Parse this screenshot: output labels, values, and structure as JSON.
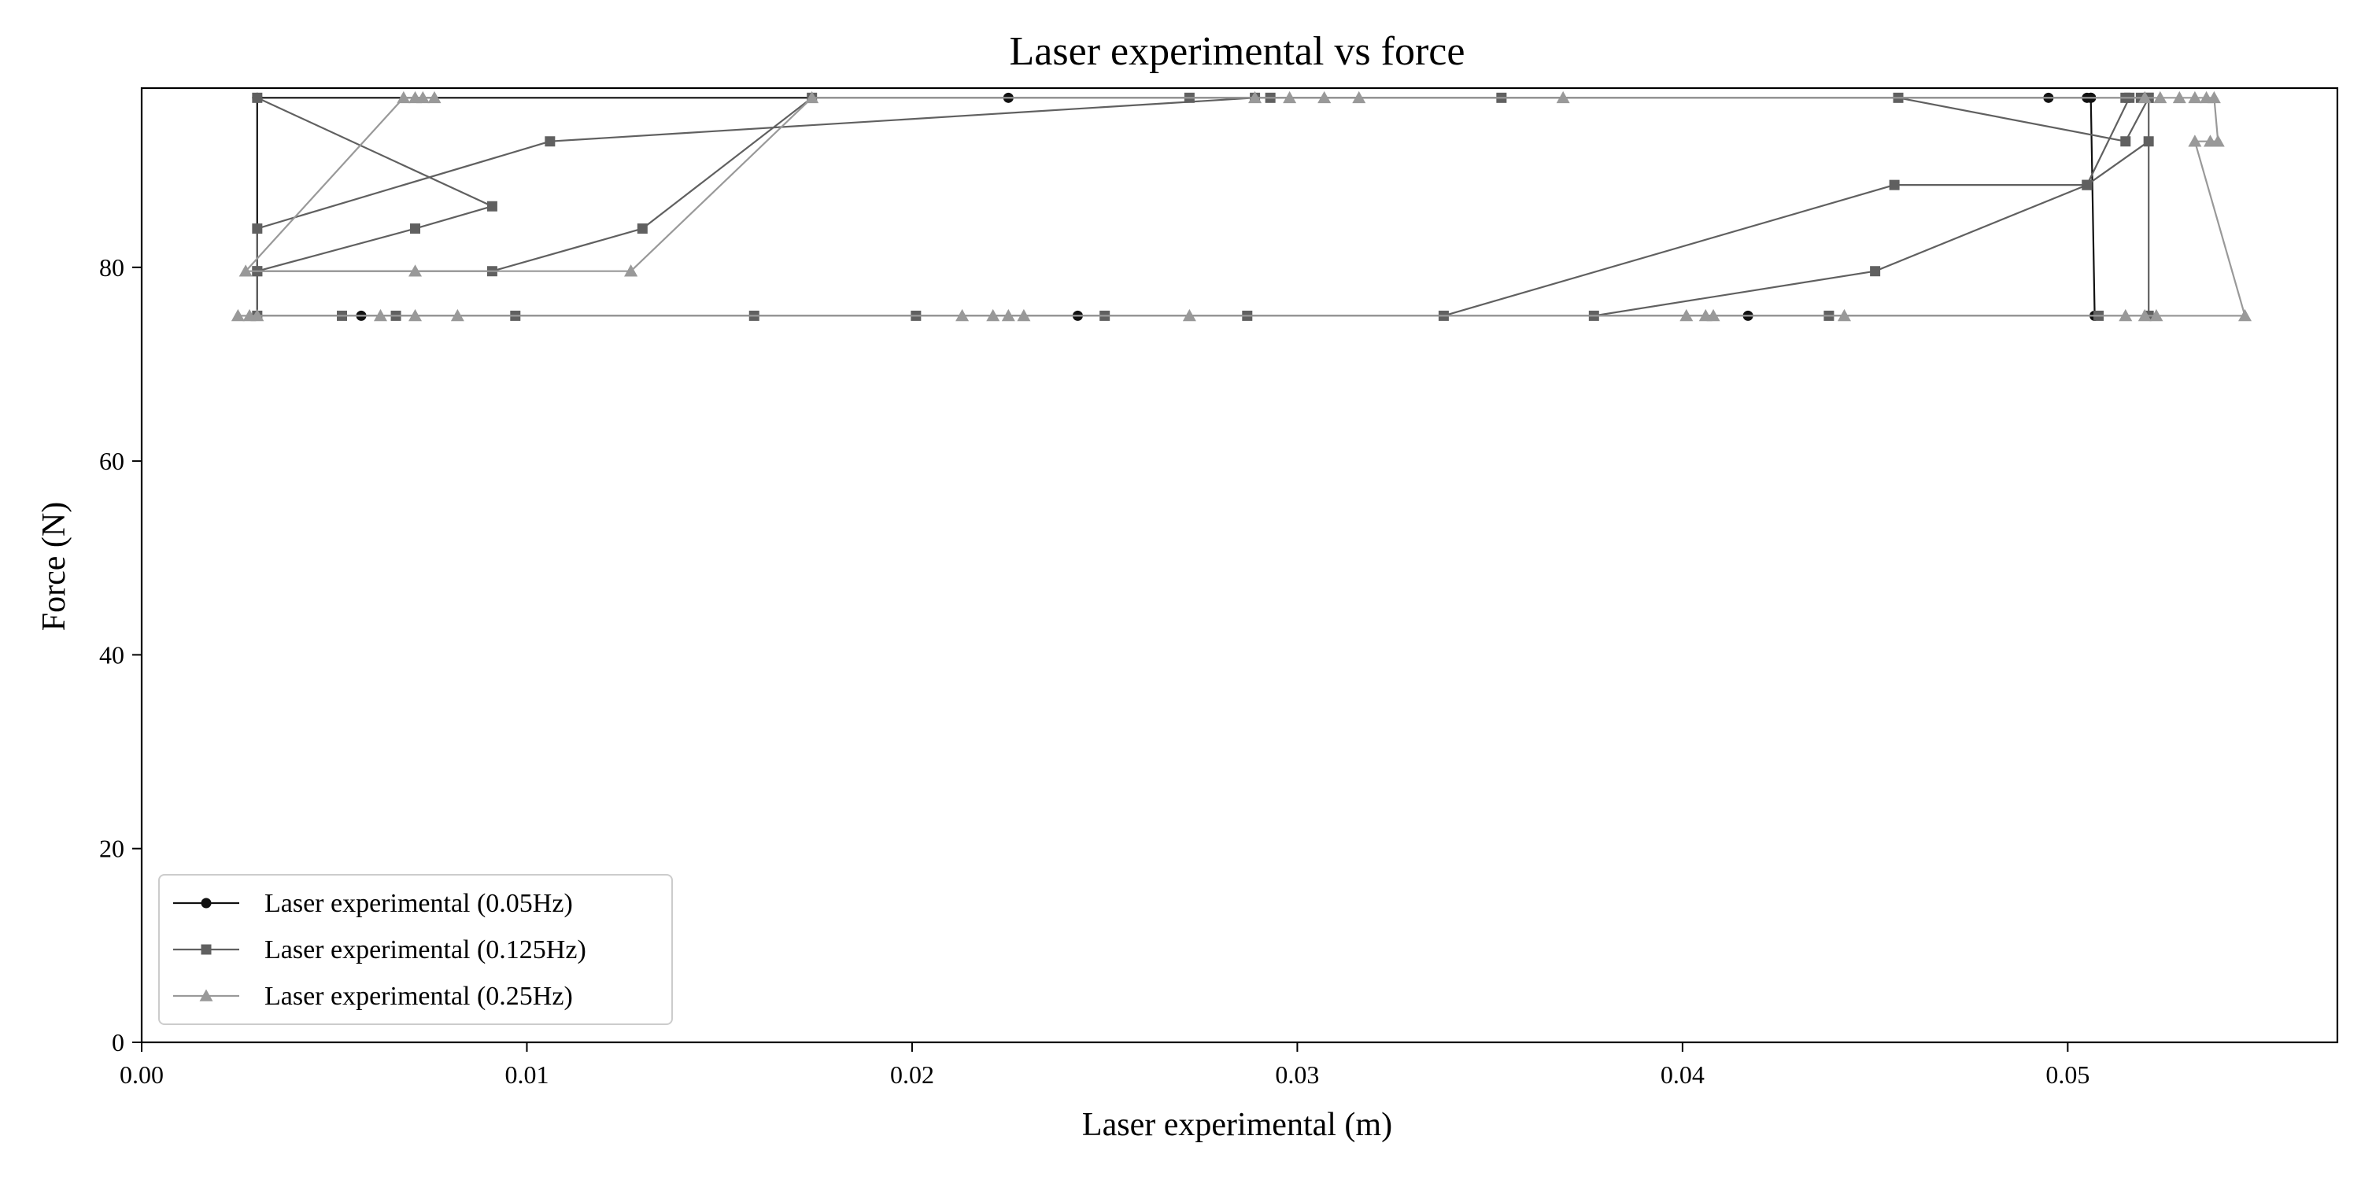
{
  "chart_data": {
    "type": "line",
    "title": "Laser experimental vs force",
    "xlabel": "Laser experimental (m)",
    "ylabel": "Force (N)",
    "xlim": [
      0.0,
      0.057
    ],
    "ylim": [
      0,
      98.5
    ],
    "xticks": [
      0.0,
      0.01,
      0.02,
      0.03,
      0.04,
      0.05
    ],
    "xtick_labels": [
      "0.00",
      "0.01",
      "0.02",
      "0.03",
      "0.04",
      "0.05"
    ],
    "yticks": [
      0,
      20,
      40,
      60,
      80
    ],
    "ytick_labels": [
      "0",
      "20",
      "40",
      "60",
      "80"
    ],
    "grid": false,
    "legend_position": "lower-left",
    "series": [
      {
        "name": "Laser experimental (0.05Hz)",
        "color": "#111111",
        "marker": "circle",
        "x": [
          0.003,
          0.0225,
          0.0495,
          0.0505,
          0.0506,
          0.0506,
          0.0506,
          0.0507,
          0.0507,
          0.0417,
          0.0243,
          0.0057,
          0.003,
          0.003
        ],
        "y": [
          97.5,
          97.5,
          97.5,
          97.5,
          97.5,
          97.5,
          97.5,
          75,
          75,
          75,
          75,
          75,
          75,
          97.5
        ]
      },
      {
        "name": "Laser experimental (0.125Hz)",
        "color": "#606060",
        "marker": "square",
        "x": [
          0.003,
          0.0091,
          0.0071,
          0.003,
          0.003,
          0.0052,
          0.0066,
          0.0097,
          0.0159,
          0.0201,
          0.025,
          0.0287,
          0.0338,
          0.0455,
          0.0505,
          0.0521,
          0.0521,
          0.0516,
          0.0505,
          0.045,
          0.0377,
          0.0438,
          0.0508,
          0.0521,
          0.0521,
          0.0515,
          0.0456,
          0.0353,
          0.0293,
          0.0272,
          0.0174,
          0.013,
          0.0091,
          0.003,
          0.003,
          0.0106,
          0.0289,
          0.0515,
          0.0519
        ],
        "y": [
          97.5,
          86.3,
          84.0,
          79.6,
          75,
          75,
          75,
          75,
          75,
          75,
          75,
          75,
          75,
          88.5,
          88.5,
          93.0,
          97.5,
          97.5,
          88.5,
          79.6,
          75,
          75,
          75,
          75,
          97.5,
          93.0,
          97.5,
          97.5,
          97.5,
          97.5,
          97.5,
          84.0,
          79.6,
          79.6,
          84.0,
          93.0,
          97.5,
          97.5,
          97.5
        ]
      },
      {
        "name": "Laser experimental (0.25Hz)",
        "color": "#999999",
        "marker": "triangle",
        "x": [
          0.0025,
          0.0028,
          0.003,
          0.0062,
          0.0071,
          0.0082,
          0.0213,
          0.0221,
          0.0225,
          0.0229,
          0.0272,
          0.0401,
          0.0406,
          0.0408,
          0.0442,
          0.0515,
          0.052,
          0.0523,
          0.0546,
          0.0533,
          0.0537,
          0.0539,
          0.0538,
          0.0536,
          0.0533,
          0.0529,
          0.0524,
          0.052,
          0.0369,
          0.0316,
          0.0307,
          0.0298,
          0.0289,
          0.0174,
          0.0127,
          0.0127,
          0.0071,
          0.0027,
          0.0068,
          0.0071,
          0.0073,
          0.0076
        ],
        "y": [
          75,
          75,
          75,
          75,
          75,
          75,
          75,
          75,
          75,
          75,
          75,
          75,
          75,
          75,
          75,
          75,
          75,
          75,
          75,
          93.0,
          93.0,
          93.0,
          97.5,
          97.5,
          97.5,
          97.5,
          97.5,
          97.5,
          97.5,
          97.5,
          97.5,
          97.5,
          97.5,
          97.5,
          79.6,
          79.6,
          79.6,
          79.6,
          97.5,
          97.5,
          97.5,
          97.5
        ]
      }
    ]
  }
}
